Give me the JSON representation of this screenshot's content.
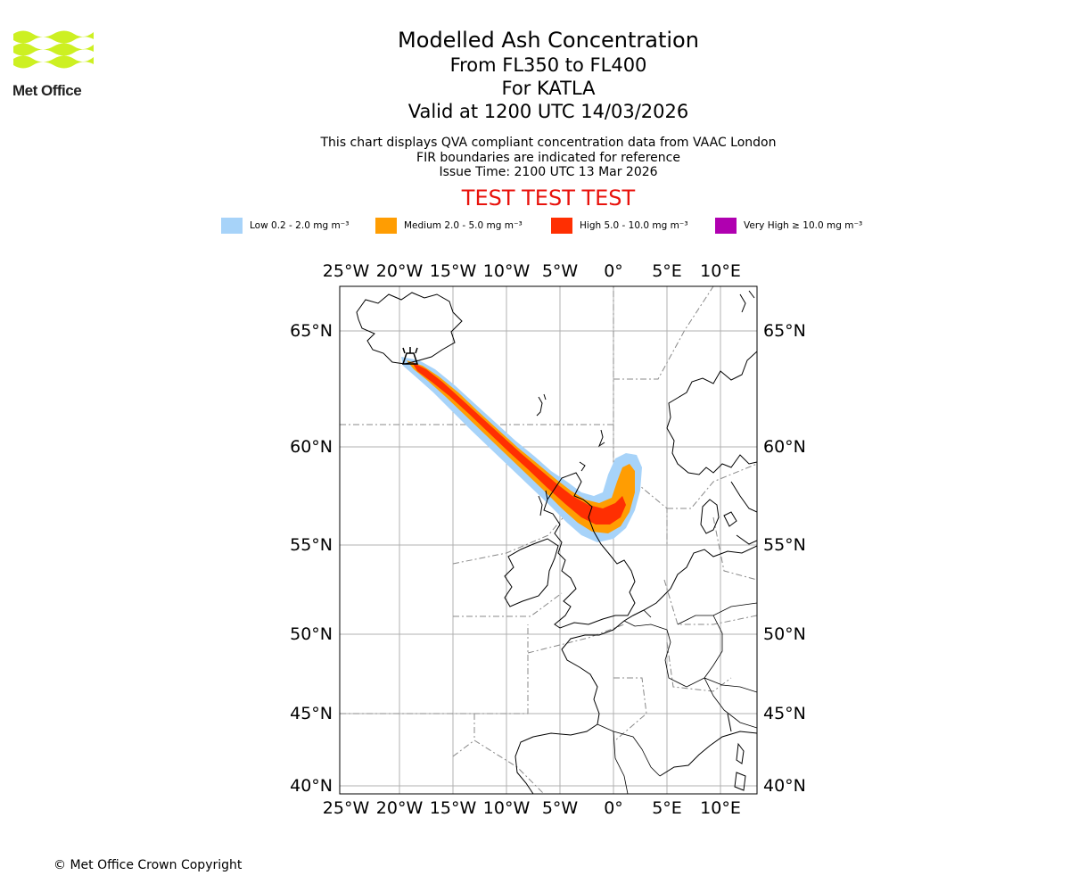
{
  "logo": {
    "text": "Met Office",
    "color": "#cdf022"
  },
  "header": {
    "title": "Modelled Ash Concentration",
    "levels": "From FL350 to FL400",
    "volcano": "For KATLA",
    "valid": "Valid at 1200 UTC 14/03/2026",
    "desc1": "This chart displays QVA compliant concentration data from VAAC London",
    "desc2": "FIR boundaries are indicated for reference",
    "issue": "Issue Time: 2100 UTC 13 Mar 2026",
    "test": "TEST TEST TEST"
  },
  "legend": [
    {
      "label": "Low 0.2 - 2.0 mg m⁻³",
      "color": "#a7d3f9"
    },
    {
      "label": "Medium 2.0 - 5.0 mg m⁻³",
      "color": "#ff9d02"
    },
    {
      "label": "High 5.0 - 10.0 mg m⁻³",
      "color": "#ff2f02"
    },
    {
      "label": "Very High ≥ 10.0 mg m⁻³",
      "color": "#b000b0"
    }
  ],
  "map": {
    "lon_labels": [
      "25°W",
      "20°W",
      "15°W",
      "10°W",
      "5°W",
      "0°",
      "5°E",
      "10°E"
    ],
    "lat_labels": [
      "65°N",
      "60°N",
      "55°N",
      "50°N",
      "45°N",
      "40°N"
    ]
  },
  "footer": {
    "copyright": "© Met Office Crown Copyright"
  }
}
